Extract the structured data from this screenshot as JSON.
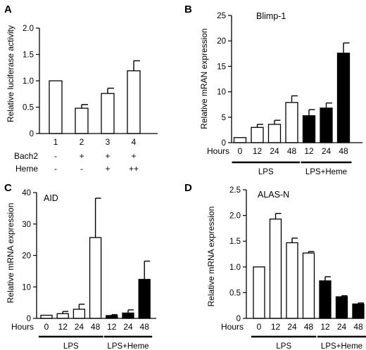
{
  "chart_data": [
    {
      "panel": "A",
      "type": "bar",
      "ylabel": "Relative luciferase activity",
      "ylim": [
        0,
        2.0
      ],
      "yticks": [
        "0",
        "0.5",
        "1.0",
        "1.5",
        "2.0"
      ],
      "categories": [
        "1",
        "2",
        "3",
        "4"
      ],
      "values": [
        1.0,
        0.48,
        0.76,
        1.19
      ],
      "errors": [
        0,
        0.07,
        0.1,
        0.19
      ],
      "fills": [
        "white",
        "white",
        "white",
        "white"
      ],
      "rows": [
        {
          "label": "Bach2",
          "values": [
            "-",
            "+",
            "+",
            "+"
          ]
        },
        {
          "label": "Heme",
          "values": [
            "-",
            "-",
            "+",
            "++"
          ]
        }
      ]
    },
    {
      "panel": "B",
      "type": "bar",
      "annotation": "Blimp-1",
      "ylabel": "Relative mRAN expression",
      "ylim": [
        0,
        25
      ],
      "yticks": [
        "0",
        "5",
        "10",
        "15",
        "20",
        "25"
      ],
      "xrow_label": "Hours",
      "categories": [
        "0",
        "12",
        "24",
        "48",
        "12",
        "24",
        "48"
      ],
      "values": [
        1.0,
        3.0,
        3.6,
        7.9,
        5.3,
        6.8,
        17.6
      ],
      "errors": [
        0,
        0.6,
        0.8,
        1.3,
        1.2,
        1.0,
        2.0
      ],
      "fills": [
        "white",
        "white",
        "white",
        "white",
        "black",
        "black",
        "black"
      ],
      "groups": [
        {
          "label": "LPS",
          "span": [
            0,
            3
          ]
        },
        {
          "label": "LPS+Heme",
          "span": [
            4,
            6
          ]
        }
      ]
    },
    {
      "panel": "C",
      "type": "bar",
      "annotation": "AID",
      "ylabel": "Relative mRNA expression",
      "ylim": [
        0,
        40
      ],
      "yticks": [
        "0",
        "10",
        "20",
        "30",
        "40"
      ],
      "xrow_label": "Hours",
      "categories": [
        "0",
        "12",
        "24",
        "48",
        "12",
        "24",
        "48"
      ],
      "values": [
        1.0,
        1.5,
        2.9,
        25.7,
        0.9,
        1.7,
        12.4
      ],
      "errors": [
        0,
        0.7,
        1.6,
        12.5,
        0.3,
        1.0,
        5.8
      ],
      "fills": [
        "white",
        "white",
        "white",
        "white",
        "black",
        "black",
        "black"
      ],
      "groups": [
        {
          "label": "LPS",
          "span": [
            0,
            3
          ]
        },
        {
          "label": "LPS+Heme",
          "span": [
            4,
            6
          ]
        }
      ]
    },
    {
      "panel": "D",
      "type": "bar",
      "annotation": "ALAS-N",
      "ylabel": "Relative mRNA expression",
      "ylim": [
        0,
        2.5
      ],
      "yticks": [
        "0",
        "0.5",
        "1.0",
        "1.5",
        "2.0",
        "2.5"
      ],
      "xrow_label": "Hours",
      "categories": [
        "0",
        "12",
        "24",
        "48",
        "12",
        "24",
        "48"
      ],
      "values": [
        1.0,
        1.93,
        1.47,
        1.27,
        0.73,
        0.42,
        0.28
      ],
      "errors": [
        0,
        0.11,
        0.09,
        0.03,
        0.08,
        0.02,
        0.02
      ],
      "fills": [
        "white",
        "white",
        "white",
        "white",
        "black",
        "black",
        "black"
      ],
      "groups": [
        {
          "label": "LPS",
          "span": [
            0,
            3
          ]
        },
        {
          "label": "LPS+Heme",
          "span": [
            4,
            6
          ]
        }
      ]
    }
  ]
}
